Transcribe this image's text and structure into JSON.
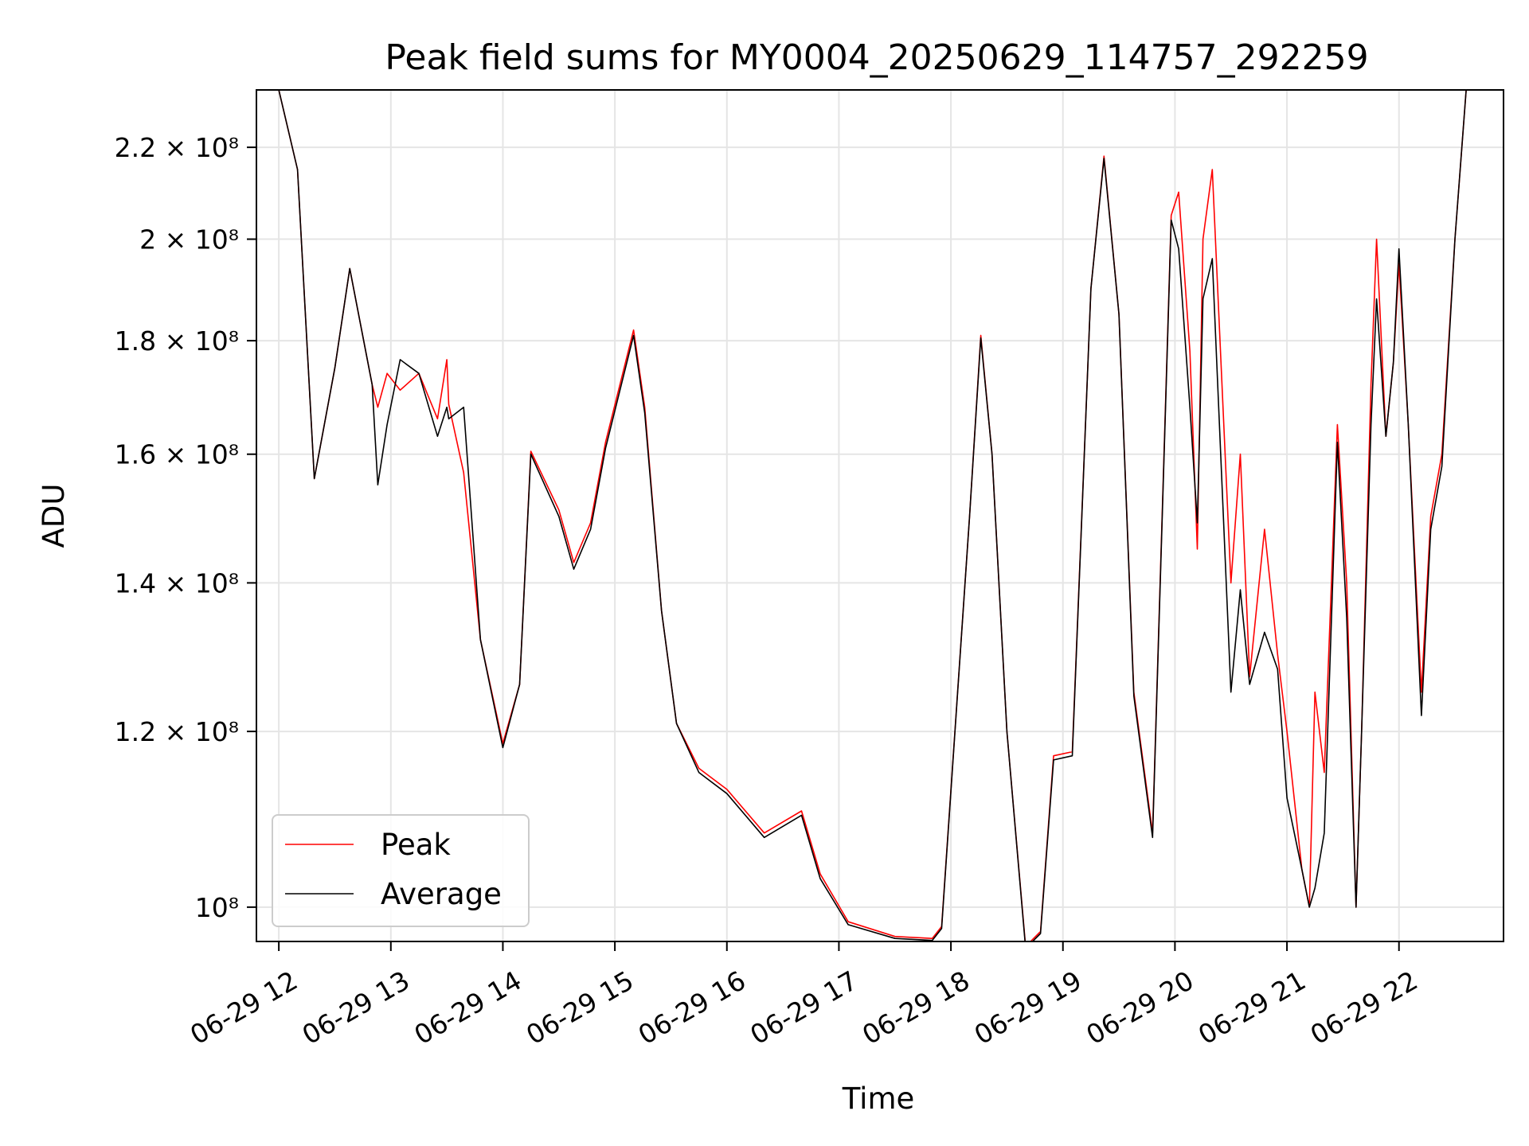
{
  "chart_data": {
    "type": "line",
    "title": "Peak field sums for MY0004_20250629_114757_292259",
    "xlabel": "Time",
    "ylabel": "ADU",
    "yscale": "log",
    "grid": true,
    "legend_position": "lower-left",
    "xlim": [
      "2025-06-29 11:48",
      "2025-06-29 22:56"
    ],
    "ylim": [
      96500000,
      233500000
    ],
    "x_ticks": [
      {
        "time": "2025-06-29 12:00",
        "label": "06-29 12"
      },
      {
        "time": "2025-06-29 13:00",
        "label": "06-29 13"
      },
      {
        "time": "2025-06-29 14:00",
        "label": "06-29 14"
      },
      {
        "time": "2025-06-29 15:00",
        "label": "06-29 15"
      },
      {
        "time": "2025-06-29 16:00",
        "label": "06-29 16"
      },
      {
        "time": "2025-06-29 17:00",
        "label": "06-29 17"
      },
      {
        "time": "2025-06-29 18:00",
        "label": "06-29 18"
      },
      {
        "time": "2025-06-29 19:00",
        "label": "06-29 19"
      },
      {
        "time": "2025-06-29 20:00",
        "label": "06-29 20"
      },
      {
        "time": "2025-06-29 21:00",
        "label": "06-29 21"
      },
      {
        "time": "2025-06-29 22:00",
        "label": "06-29 22"
      }
    ],
    "y_ticks": [
      {
        "value": 100000000,
        "label": "10⁸"
      },
      {
        "value": 120000000,
        "label": "1.2 × 10⁸"
      },
      {
        "value": 140000000,
        "label": "1.4 × 10⁸"
      },
      {
        "value": 160000000,
        "label": "1.6 × 10⁸"
      },
      {
        "value": 180000000,
        "label": "1.8 × 10⁸"
      },
      {
        "value": 200000000,
        "label": "2 × 10⁸"
      },
      {
        "value": 220000000,
        "label": "2.2 × 10⁸"
      }
    ],
    "series": [
      {
        "name": "Peak",
        "color": "#ff0000",
        "points": [
          [
            "2025-06-29 11:48",
            233500000
          ],
          [
            "2025-06-29 12:00",
            233500000
          ],
          [
            "2025-06-29 12:10",
            215000000
          ],
          [
            "2025-06-29 12:19",
            156000000
          ],
          [
            "2025-06-29 12:30",
            175000000
          ],
          [
            "2025-06-29 12:38",
            194000000
          ],
          [
            "2025-06-29 12:50",
            172000000
          ],
          [
            "2025-06-29 12:53",
            168000000
          ],
          [
            "2025-06-29 12:58",
            174000000
          ],
          [
            "2025-06-29 13:05",
            171000000
          ],
          [
            "2025-06-29 13:15",
            174000000
          ],
          [
            "2025-06-29 13:25",
            166000000
          ],
          [
            "2025-06-29 13:30",
            176500000
          ],
          [
            "2025-06-29 13:31",
            168500000
          ],
          [
            "2025-06-29 13:39",
            157000000
          ],
          [
            "2025-06-29 13:48",
            132000000
          ],
          [
            "2025-06-29 14:00",
            118500000
          ],
          [
            "2025-06-29 14:09",
            126000000
          ],
          [
            "2025-06-29 14:15",
            160500000
          ],
          [
            "2025-06-29 14:30",
            151000000
          ],
          [
            "2025-06-29 14:38",
            143000000
          ],
          [
            "2025-06-29 14:47",
            149000000
          ],
          [
            "2025-06-29 14:55",
            162000000
          ],
          [
            "2025-06-29 15:10",
            182000000
          ],
          [
            "2025-06-29 15:16",
            168000000
          ],
          [
            "2025-06-29 15:25",
            136000000
          ],
          [
            "2025-06-29 15:33",
            121000000
          ],
          [
            "2025-06-29 15:45",
            115500000
          ],
          [
            "2025-06-29 16:00",
            113000000
          ],
          [
            "2025-06-29 16:20",
            108000000
          ],
          [
            "2025-06-29 16:40",
            110500000
          ],
          [
            "2025-06-29 16:50",
            103500000
          ],
          [
            "2025-06-29 17:05",
            98500000
          ],
          [
            "2025-06-29 17:30",
            97000000
          ],
          [
            "2025-06-29 17:50",
            96800000
          ],
          [
            "2025-06-29 17:55",
            98000000
          ],
          [
            "2025-06-29 18:10",
            150000000
          ],
          [
            "2025-06-29 18:16",
            181000000
          ],
          [
            "2025-06-29 18:22",
            160000000
          ],
          [
            "2025-06-29 18:30",
            120000000
          ],
          [
            "2025-06-29 18:40",
            96000000
          ],
          [
            "2025-06-29 18:48",
            97500000
          ],
          [
            "2025-06-29 18:55",
            117000000
          ],
          [
            "2025-06-29 19:05",
            117500000
          ],
          [
            "2025-06-29 19:15",
            190000000
          ],
          [
            "2025-06-29 19:22",
            218000000
          ],
          [
            "2025-06-29 19:30",
            185000000
          ],
          [
            "2025-06-29 19:38",
            125000000
          ],
          [
            "2025-06-29 19:48",
            108000000
          ],
          [
            "2025-06-29 19:58",
            205000000
          ],
          [
            "2025-06-29 20:02",
            210000000
          ],
          [
            "2025-06-29 20:08",
            178000000
          ],
          [
            "2025-06-29 20:12",
            145000000
          ],
          [
            "2025-06-29 20:15",
            200000000
          ],
          [
            "2025-06-29 20:20",
            215000000
          ],
          [
            "2025-06-29 20:30",
            140000000
          ],
          [
            "2025-06-29 20:35",
            160000000
          ],
          [
            "2025-06-29 20:40",
            127000000
          ],
          [
            "2025-06-29 20:48",
            148000000
          ],
          [
            "2025-06-29 20:55",
            130000000
          ],
          [
            "2025-06-29 21:00",
            120000000
          ],
          [
            "2025-06-29 21:08",
            104000000
          ],
          [
            "2025-06-29 21:12",
            100000000
          ],
          [
            "2025-06-29 21:15",
            125000000
          ],
          [
            "2025-06-29 21:20",
            115000000
          ],
          [
            "2025-06-29 21:27",
            165000000
          ],
          [
            "2025-06-29 21:32",
            140000000
          ],
          [
            "2025-06-29 21:37",
            100000000
          ],
          [
            "2025-06-29 21:40",
            120000000
          ],
          [
            "2025-06-29 21:45",
            172000000
          ],
          [
            "2025-06-29 21:48",
            200000000
          ],
          [
            "2025-06-29 21:53",
            163000000
          ],
          [
            "2025-06-29 21:57",
            176000000
          ],
          [
            "2025-06-29 22:00",
            195000000
          ],
          [
            "2025-06-29 22:05",
            165000000
          ],
          [
            "2025-06-29 22:12",
            125000000
          ],
          [
            "2025-06-29 22:17",
            150000000
          ],
          [
            "2025-06-29 22:23",
            160000000
          ],
          [
            "2025-06-29 22:30",
            200000000
          ],
          [
            "2025-06-29 22:36",
            233500000
          ],
          [
            "2025-06-29 22:56",
            233500000
          ]
        ]
      },
      {
        "name": "Average",
        "color": "#000000",
        "points": [
          [
            "2025-06-29 11:48",
            233500000
          ],
          [
            "2025-06-29 12:00",
            233500000
          ],
          [
            "2025-06-29 12:10",
            215000000
          ],
          [
            "2025-06-29 12:19",
            156000000
          ],
          [
            "2025-06-29 12:30",
            175000000
          ],
          [
            "2025-06-29 12:38",
            194000000
          ],
          [
            "2025-06-29 12:50",
            172000000
          ],
          [
            "2025-06-29 12:53",
            155000000
          ],
          [
            "2025-06-29 12:58",
            165000000
          ],
          [
            "2025-06-29 13:05",
            176500000
          ],
          [
            "2025-06-29 13:15",
            174000000
          ],
          [
            "2025-06-29 13:25",
            163000000
          ],
          [
            "2025-06-29 13:30",
            168000000
          ],
          [
            "2025-06-29 13:31",
            166000000
          ],
          [
            "2025-06-29 13:39",
            168000000
          ],
          [
            "2025-06-29 13:48",
            132000000
          ],
          [
            "2025-06-29 14:00",
            118000000
          ],
          [
            "2025-06-29 14:09",
            126000000
          ],
          [
            "2025-06-29 14:15",
            160000000
          ],
          [
            "2025-06-29 14:30",
            150000000
          ],
          [
            "2025-06-29 14:38",
            142000000
          ],
          [
            "2025-06-29 14:47",
            148000000
          ],
          [
            "2025-06-29 14:55",
            161000000
          ],
          [
            "2025-06-29 15:10",
            181000000
          ],
          [
            "2025-06-29 15:16",
            167000000
          ],
          [
            "2025-06-29 15:25",
            136000000
          ],
          [
            "2025-06-29 15:33",
            121000000
          ],
          [
            "2025-06-29 15:45",
            115000000
          ],
          [
            "2025-06-29 16:00",
            112500000
          ],
          [
            "2025-06-29 16:20",
            107500000
          ],
          [
            "2025-06-29 16:40",
            110000000
          ],
          [
            "2025-06-29 16:50",
            103000000
          ],
          [
            "2025-06-29 17:05",
            98200000
          ],
          [
            "2025-06-29 17:30",
            96800000
          ],
          [
            "2025-06-29 17:50",
            96600000
          ],
          [
            "2025-06-29 17:55",
            97800000
          ],
          [
            "2025-06-29 18:10",
            150000000
          ],
          [
            "2025-06-29 18:16",
            180500000
          ],
          [
            "2025-06-29 18:22",
            160000000
          ],
          [
            "2025-06-29 18:30",
            120000000
          ],
          [
            "2025-06-29 18:40",
            95800000
          ],
          [
            "2025-06-29 18:48",
            97300000
          ],
          [
            "2025-06-29 18:55",
            116500000
          ],
          [
            "2025-06-29 19:05",
            117000000
          ],
          [
            "2025-06-29 19:15",
            190000000
          ],
          [
            "2025-06-29 19:22",
            217500000
          ],
          [
            "2025-06-29 19:30",
            185000000
          ],
          [
            "2025-06-29 19:38",
            124500000
          ],
          [
            "2025-06-29 19:48",
            107500000
          ],
          [
            "2025-06-29 19:58",
            204000000
          ],
          [
            "2025-06-29 20:02",
            198000000
          ],
          [
            "2025-06-29 20:08",
            168000000
          ],
          [
            "2025-06-29 20:12",
            149000000
          ],
          [
            "2025-06-29 20:15",
            188000000
          ],
          [
            "2025-06-29 20:20",
            196000000
          ],
          [
            "2025-06-29 20:30",
            125000000
          ],
          [
            "2025-06-29 20:35",
            139000000
          ],
          [
            "2025-06-29 20:40",
            126000000
          ],
          [
            "2025-06-29 20:48",
            133000000
          ],
          [
            "2025-06-29 20:55",
            128000000
          ],
          [
            "2025-06-29 21:00",
            112000000
          ],
          [
            "2025-06-29 21:08",
            104000000
          ],
          [
            "2025-06-29 21:12",
            100000000
          ],
          [
            "2025-06-29 21:15",
            102000000
          ],
          [
            "2025-06-29 21:20",
            108000000
          ],
          [
            "2025-06-29 21:27",
            162000000
          ],
          [
            "2025-06-29 21:32",
            135000000
          ],
          [
            "2025-06-29 21:37",
            100000000
          ],
          [
            "2025-06-29 21:40",
            120000000
          ],
          [
            "2025-06-29 21:45",
            165000000
          ],
          [
            "2025-06-29 21:48",
            188000000
          ],
          [
            "2025-06-29 21:53",
            163000000
          ],
          [
            "2025-06-29 21:57",
            176000000
          ],
          [
            "2025-06-29 22:00",
            198000000
          ],
          [
            "2025-06-29 22:05",
            165000000
          ],
          [
            "2025-06-29 22:12",
            122000000
          ],
          [
            "2025-06-29 22:17",
            148000000
          ],
          [
            "2025-06-29 22:23",
            158000000
          ],
          [
            "2025-06-29 22:30",
            200000000
          ],
          [
            "2025-06-29 22:36",
            233500000
          ],
          [
            "2025-06-29 22:56",
            233500000
          ]
        ]
      }
    ]
  }
}
